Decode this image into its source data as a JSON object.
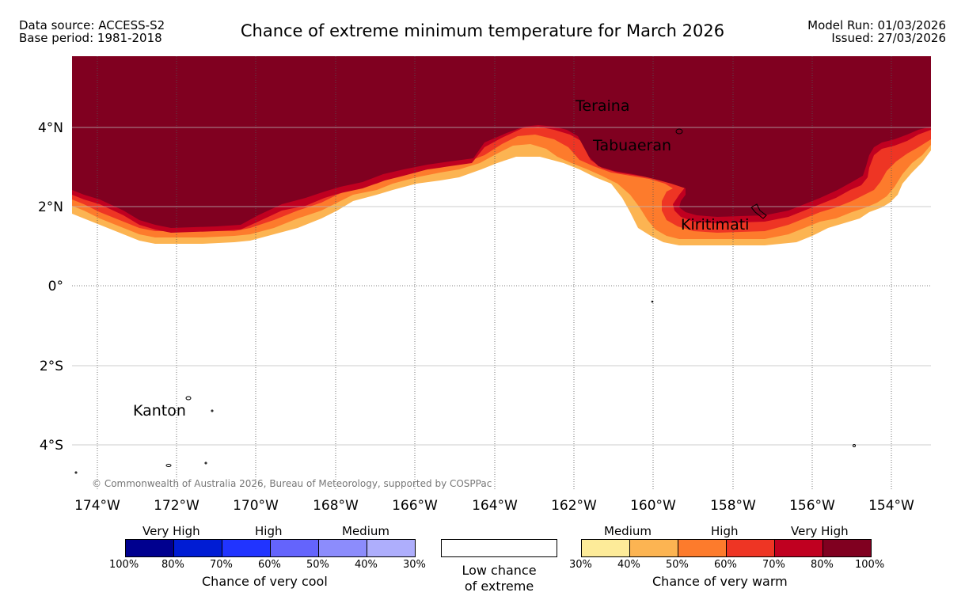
{
  "header": {
    "data_source": "Data source: ACCESS-S2",
    "base_period": "Base period: 1981-2018",
    "title": "Chance of extreme minimum temperature for March 2026",
    "model_run": "Model Run: 01/03/2026",
    "issued": "Issued: 27/03/2026"
  },
  "map": {
    "lon_labels": [
      "174°W",
      "172°W",
      "170°W",
      "168°W",
      "166°W",
      "164°W",
      "162°W",
      "160°W",
      "158°W",
      "156°W",
      "154°W"
    ],
    "lat_labels": [
      "4°N",
      "2°N",
      "0°",
      "2°S",
      "4°S"
    ],
    "places": [
      "Teraina",
      "Tabuaeran",
      "Kiritimati",
      "Kanton"
    ],
    "copyright": "© Commonwealth of Australia 2026, Bureau of Meteorology, supported by COSPPac",
    "colors": {
      "ocean_100": "#800020",
      "band_80": "#c00020",
      "band_70": "#ee3524",
      "band_60": "#fd7b2c",
      "band_50": "#fcb452",
      "grid": "#555555"
    }
  },
  "legend": {
    "cool": {
      "categories": [
        "Very High",
        "High",
        "Medium"
      ],
      "ticks": [
        "100%",
        "80%",
        "70%",
        "60%",
        "50%",
        "40%",
        "30%"
      ],
      "title": "Chance of very cool",
      "colors": [
        "#00008f",
        "#001cd4",
        "#2134ff",
        "#6464fc",
        "#8c8cfc",
        "#aeaefc"
      ]
    },
    "neutral": {
      "line1": "Low chance",
      "line2": "of extreme"
    },
    "warm": {
      "categories": [
        "Medium",
        "High",
        "Very High"
      ],
      "ticks": [
        "30%",
        "40%",
        "50%",
        "60%",
        "70%",
        "80%",
        "100%"
      ],
      "title": "Chance of very warm",
      "colors": [
        "#fdeb99",
        "#fcb452",
        "#fd7b2c",
        "#ee3524",
        "#c00020",
        "#800020"
      ]
    }
  }
}
